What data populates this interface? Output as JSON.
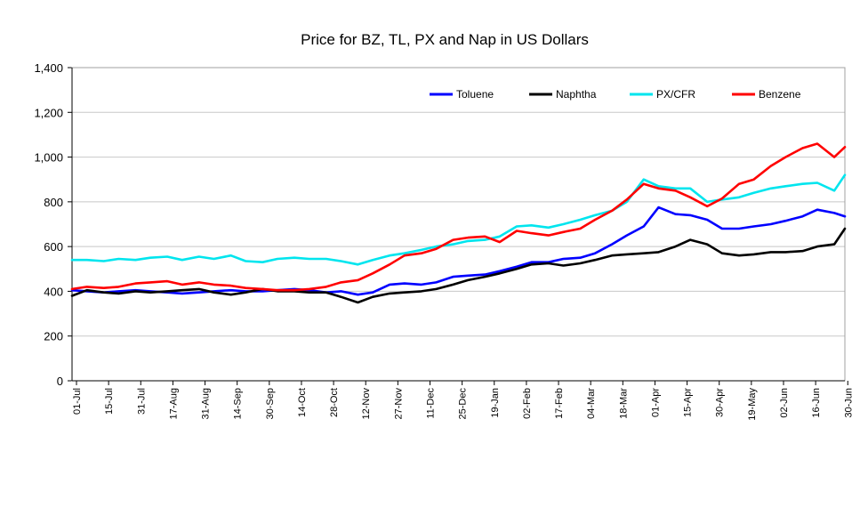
{
  "chart_data": {
    "type": "line",
    "title": "Price for BZ, TL, PX and Nap in US Dollars",
    "xlabel": "",
    "ylabel": "",
    "ylim": [
      0,
      1400
    ],
    "yticks": [
      0,
      200,
      400,
      600,
      800,
      1000,
      1200,
      1400
    ],
    "ytick_labels": [
      "0",
      "200",
      "400",
      "600",
      "800",
      "1,000",
      "1,200",
      "1,400"
    ],
    "grid": true,
    "legend_position": "top-right",
    "x_tick_labels": [
      "01-Jul",
      "15-Jul",
      "31-Jul",
      "17-Aug",
      "31-Aug",
      "14-Sep",
      "30-Sep",
      "14-Oct",
      "28-Oct",
      "12-Nov",
      "27-Nov",
      "11-Dec",
      "25-Dec",
      "19-Jan",
      "02-Feb",
      "17-Feb",
      "04-Mar",
      "18-Mar",
      "01-Apr",
      "15-Apr",
      "30-Apr",
      "19-May",
      "02-Jun",
      "16-Jun",
      "30-Jun"
    ],
    "x": [
      0,
      7,
      15,
      22,
      30,
      37,
      45,
      52,
      60,
      67,
      75,
      82,
      90,
      97,
      105,
      112,
      120,
      127,
      135,
      142,
      150,
      157,
      165,
      172,
      180,
      187,
      195,
      202,
      210,
      217,
      225,
      232,
      240,
      247,
      255,
      262,
      270,
      277,
      285,
      292,
      300,
      307,
      315,
      322,
      330,
      337,
      345,
      352,
      360,
      365
    ],
    "x_unit": "days from 01-Jul",
    "series": [
      {
        "name": "Toluene",
        "color": "#0000ff",
        "values": [
          405,
          400,
          395,
          400,
          405,
          400,
          395,
          390,
          395,
          400,
          405,
          400,
          400,
          405,
          410,
          405,
          395,
          400,
          385,
          395,
          430,
          435,
          430,
          440,
          465,
          470,
          475,
          490,
          510,
          530,
          530,
          545,
          550,
          570,
          610,
          650,
          690,
          775,
          745,
          740,
          720,
          680,
          680,
          690,
          700,
          715,
          735,
          765,
          750,
          735
        ]
      },
      {
        "name": "Naphtha",
        "color": "#000000",
        "values": [
          380,
          405,
          395,
          390,
          400,
          395,
          400,
          405,
          410,
          395,
          385,
          395,
          410,
          400,
          400,
          395,
          395,
          375,
          350,
          375,
          390,
          395,
          400,
          410,
          430,
          450,
          465,
          480,
          500,
          520,
          525,
          515,
          525,
          540,
          560,
          565,
          570,
          575,
          600,
          630,
          610,
          570,
          560,
          565,
          575,
          575,
          580,
          600,
          610,
          680
        ]
      },
      {
        "name": "PX/CFR",
        "color": "#00e5ee",
        "values": [
          540,
          540,
          535,
          545,
          540,
          550,
          555,
          540,
          555,
          545,
          560,
          535,
          530,
          545,
          550,
          545,
          545,
          535,
          520,
          540,
          560,
          570,
          585,
          600,
          610,
          625,
          630,
          645,
          690,
          695,
          685,
          700,
          720,
          740,
          760,
          800,
          900,
          870,
          860,
          860,
          800,
          810,
          820,
          840,
          860,
          870,
          880,
          885,
          850,
          920
        ]
      },
      {
        "name": "Benzene",
        "color": "#ff0000",
        "values": [
          410,
          420,
          415,
          420,
          435,
          440,
          445,
          430,
          440,
          430,
          425,
          415,
          410,
          405,
          405,
          410,
          420,
          440,
          450,
          480,
          520,
          560,
          570,
          590,
          630,
          640,
          645,
          620,
          670,
          660,
          650,
          665,
          680,
          720,
          760,
          810,
          880,
          860,
          850,
          820,
          780,
          815,
          880,
          900,
          960,
          1000,
          1040,
          1060,
          1000,
          1045
        ]
      }
    ]
  }
}
